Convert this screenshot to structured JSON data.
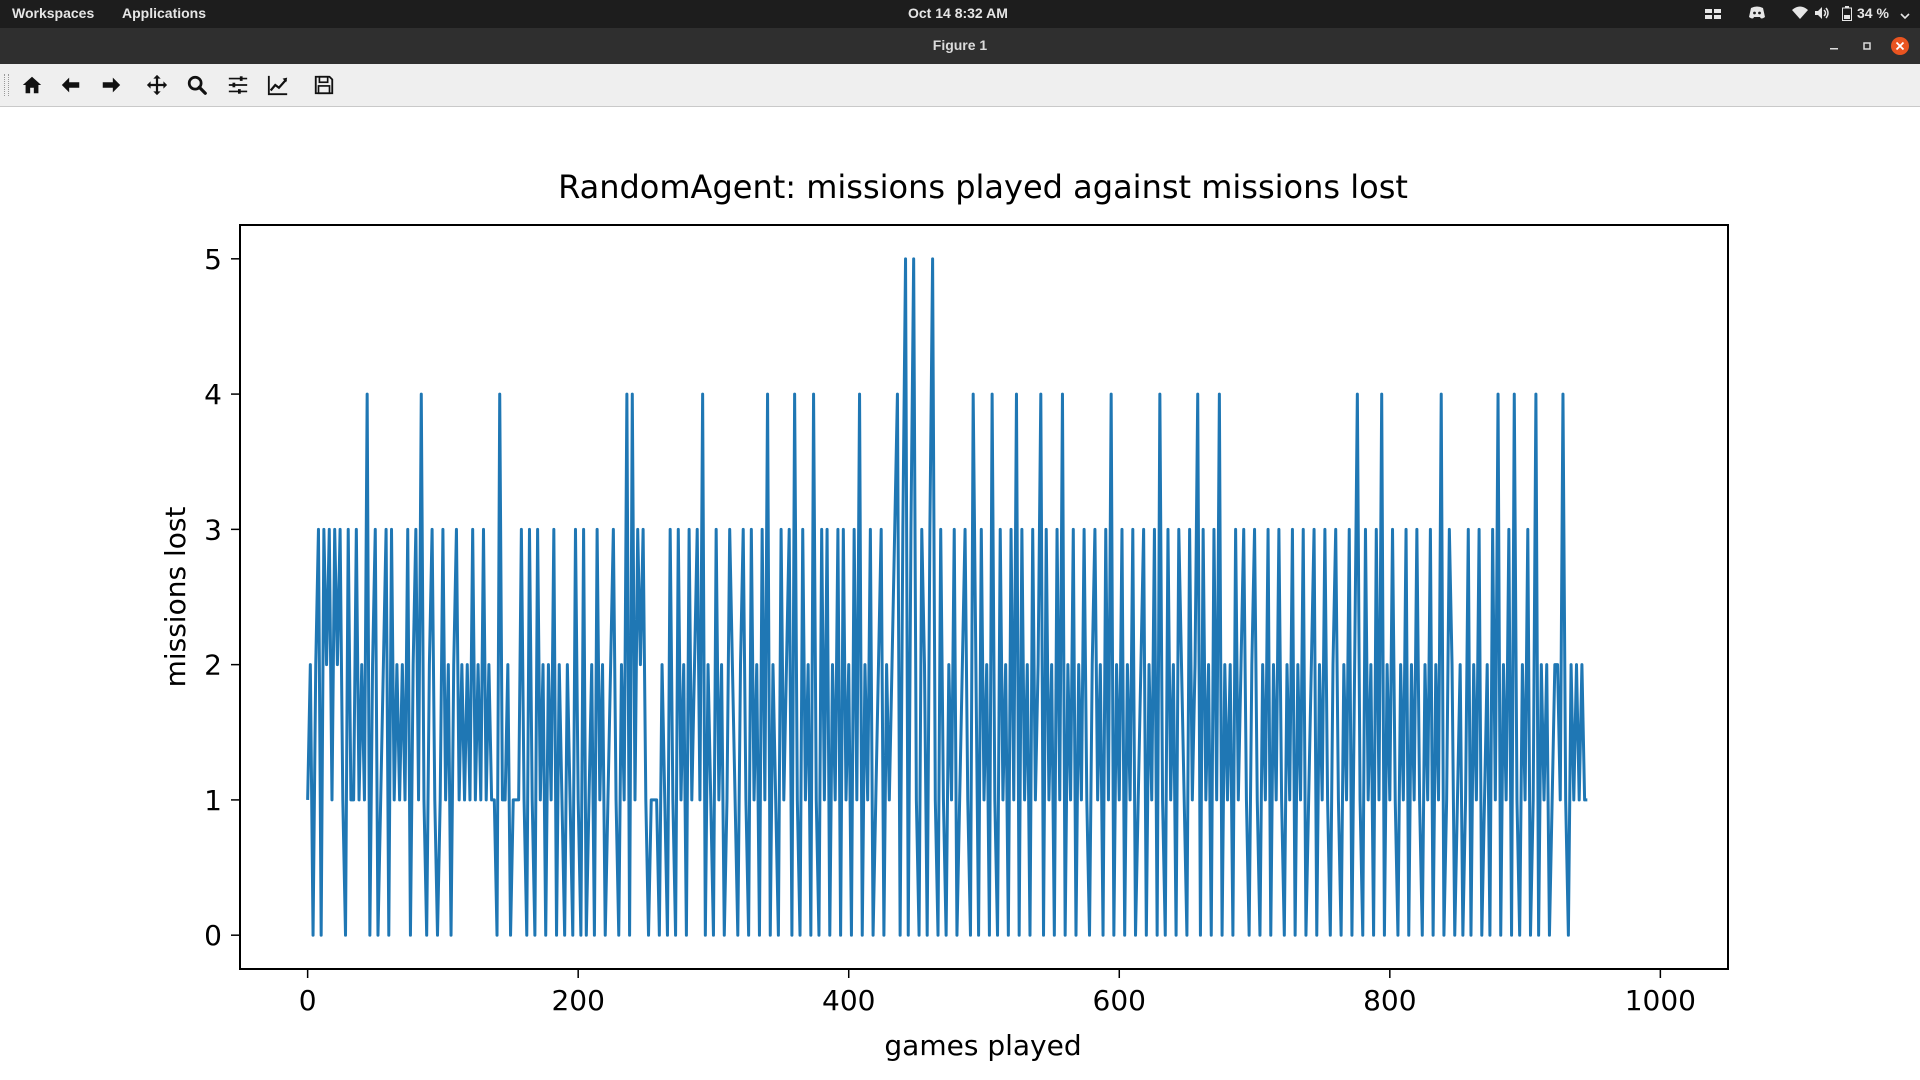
{
  "topbar": {
    "workspaces": "Workspaces",
    "applications": "Applications",
    "clock": "Oct 14   8:32 AM",
    "battery": "34 %"
  },
  "window": {
    "title": "Figure 1",
    "close_color": "#e95420"
  },
  "toolbar": {
    "tools": [
      "home-icon",
      "back-arrow-icon",
      "forward-arrow-icon",
      "pan-move-icon",
      "zoom-magnifier-icon",
      "subplots-sliders-icon",
      "edit-axis-icon",
      "save-floppy-icon"
    ]
  },
  "chart_data": {
    "type": "line",
    "title": "RandomAgent: missions played against missions lost",
    "xlabel": "games played",
    "ylabel": "missions lost",
    "xlim": [
      -50,
      1050
    ],
    "ylim": [
      -0.25,
      5.25
    ],
    "xticks": [
      0,
      200,
      400,
      600,
      800,
      1000
    ],
    "yticks": [
      0,
      1,
      2,
      3,
      4,
      5
    ],
    "line_color": "#1f77b4",
    "grid": false,
    "legend": "none",
    "x_start": 0,
    "x_step": 2,
    "series": [
      {
        "values": [
          1,
          2,
          0,
          2,
          3,
          0,
          3,
          2,
          3,
          1,
          3,
          2,
          3,
          1,
          0,
          3,
          1,
          1,
          3,
          1,
          2,
          1,
          4,
          0,
          2,
          3,
          0,
          1,
          2,
          3,
          0,
          3,
          1,
          2,
          1,
          2,
          1,
          3,
          0,
          2,
          3,
          1,
          4,
          1,
          0,
          2,
          3,
          1,
          0,
          1,
          3,
          1,
          2,
          0,
          2,
          3,
          1,
          2,
          1,
          2,
          1,
          3,
          1,
          2,
          1,
          3,
          1,
          2,
          1,
          1,
          0,
          4,
          1,
          1,
          2,
          0,
          1,
          1,
          1,
          3,
          1,
          0,
          3,
          1,
          0,
          3,
          1,
          2,
          0,
          2,
          1,
          3,
          0,
          2,
          1,
          0,
          2,
          1,
          0,
          3,
          1,
          0,
          3,
          0,
          1,
          2,
          0,
          3,
          1,
          2,
          0,
          1,
          2,
          3,
          1,
          0,
          2,
          1,
          4,
          0,
          4,
          1,
          3,
          2,
          3,
          1,
          0,
          1,
          1,
          1,
          0,
          2,
          1,
          0,
          3,
          1,
          0,
          3,
          1,
          2,
          0,
          3,
          1,
          2,
          3,
          1,
          4,
          0,
          2,
          1,
          0,
          3,
          1,
          2,
          0,
          1,
          3,
          2,
          1,
          0,
          2,
          3,
          1,
          0,
          3,
          1,
          2,
          0,
          3,
          1,
          4,
          0,
          2,
          1,
          0,
          3,
          1,
          2,
          3,
          0,
          4,
          1,
          0,
          3,
          1,
          2,
          0,
          4,
          1,
          0,
          3,
          1,
          3,
          0,
          2,
          1,
          3,
          0,
          3,
          1,
          2,
          0,
          3,
          1,
          4,
          0,
          2,
          1,
          3,
          0,
          1,
          2,
          3,
          0,
          2,
          1,
          2,
          3,
          4,
          0,
          3,
          5,
          0,
          3,
          5,
          1,
          0,
          3,
          2,
          0,
          3,
          5,
          1,
          0,
          3,
          1,
          0,
          2,
          1,
          3,
          0,
          1,
          2,
          3,
          1,
          0,
          4,
          2,
          0,
          3,
          1,
          2,
          0,
          4,
          1,
          0,
          3,
          1,
          2,
          0,
          3,
          1,
          4,
          0,
          3,
          1,
          2,
          0,
          3,
          1,
          2,
          4,
          0,
          3,
          1,
          2,
          0,
          3,
          1,
          4,
          0,
          2,
          1,
          3,
          0,
          2,
          1,
          3,
          1,
          0,
          2,
          3,
          1,
          2,
          0,
          3,
          1,
          4,
          0,
          2,
          1,
          3,
          0,
          2,
          1,
          3,
          0,
          1,
          2,
          3,
          0,
          2,
          1,
          3,
          0,
          4,
          1,
          0,
          3,
          1,
          2,
          0,
          3,
          2,
          1,
          0,
          3,
          1,
          2,
          4,
          0,
          3,
          1,
          2,
          0,
          3,
          1,
          4,
          0,
          2,
          1,
          2,
          0,
          3,
          1,
          2,
          3,
          1,
          0,
          2,
          3,
          1,
          0,
          2,
          1,
          3,
          0,
          2,
          1,
          3,
          1,
          0,
          2,
          1,
          3,
          0,
          2,
          1,
          3,
          0,
          1,
          2,
          3,
          0,
          2,
          1,
          3,
          1,
          0,
          2,
          3,
          1,
          0,
          2,
          1,
          3,
          0,
          2,
          4,
          1,
          0,
          3,
          1,
          2,
          0,
          3,
          1,
          4,
          0,
          2,
          1,
          3,
          1,
          0,
          2,
          1,
          3,
          0,
          2,
          1,
          3,
          1,
          0,
          2,
          1,
          3,
          0,
          2,
          1,
          4,
          0,
          1,
          3,
          2,
          0,
          1,
          2,
          0,
          1,
          3,
          0,
          2,
          1,
          3,
          0,
          1,
          2,
          0,
          3,
          1,
          4,
          0,
          2,
          1,
          3,
          0,
          4,
          1,
          0,
          2,
          1,
          3,
          0,
          1,
          4,
          0,
          2,
          1,
          2,
          0,
          1,
          2,
          2,
          1,
          4,
          1,
          0,
          2,
          1,
          2,
          1,
          2,
          1,
          1
        ]
      }
    ]
  }
}
